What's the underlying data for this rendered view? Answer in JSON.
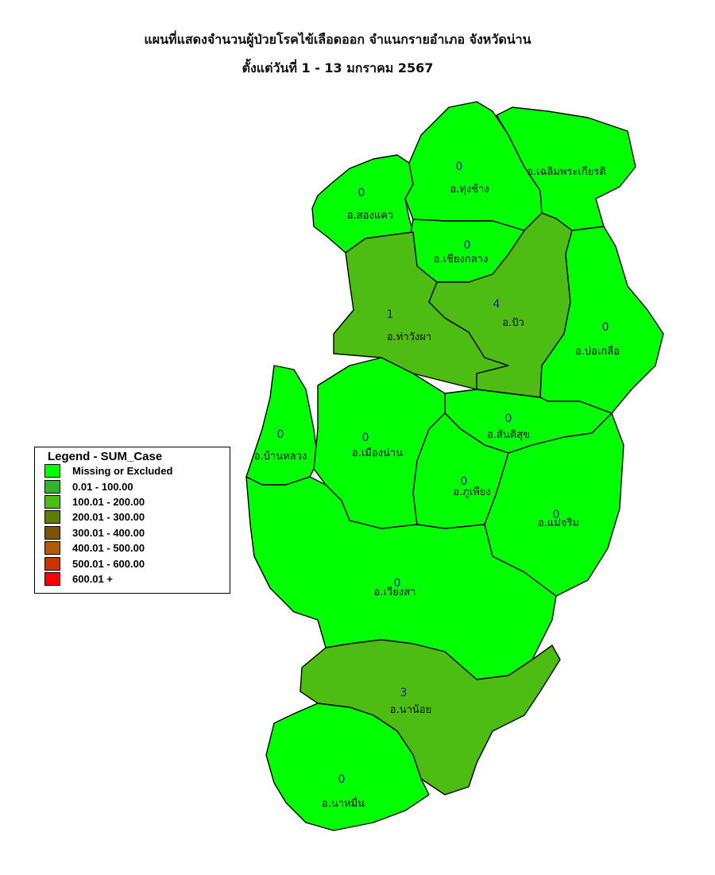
{
  "title_line1": "แผนที่แสดงจำนวนผู้ป่วยโรคไข้เลือดออก จำแนกรายอำเภอ จังหวัดน่าน",
  "title_line2": "ตั้งแต่วันที่ 1  - 13 มกราคม 2567",
  "legend": {
    "title": "Legend - SUM_Case",
    "items": [
      {
        "label": "Missing or Excluded",
        "color": "#00ff00"
      },
      {
        "label": "0.01 - 100.00",
        "color": "#2fb52f"
      },
      {
        "label": "100.01 - 200.00",
        "color": "#4dbd13"
      },
      {
        "label": "200.01 - 300.00",
        "color": "#5b7d0a"
      },
      {
        "label": "300.01 - 400.00",
        "color": "#7d5206"
      },
      {
        "label": "400.01 - 500.00",
        "color": "#b35a00"
      },
      {
        "label": "500.01 - 600.00",
        "color": "#cc3300"
      },
      {
        "label": "600.01 +",
        "color": "#ff0000"
      }
    ]
  },
  "districts": {
    "songkhwae": {
      "name": "อ.สองแคว",
      "cases": "0"
    },
    "thungchang": {
      "name": "อ.ทุ่งช้าง",
      "cases": "0"
    },
    "chaloem": {
      "name": "อ.เฉลิมพระเกียรติ"
    },
    "chiangklang": {
      "name": "อ.เชียงกลาง",
      "cases": "0"
    },
    "thawangpha": {
      "name": "อ.ท่าวังผา",
      "cases": "1"
    },
    "pua": {
      "name": "อ.ปัว",
      "cases": "4"
    },
    "bokluea": {
      "name": "อ.บ่อเกลือ",
      "cases": "0"
    },
    "santisuk": {
      "name": "อ.สันติสุข",
      "cases": "0"
    },
    "banluang": {
      "name": "อ.บ้านหลวง",
      "cases": "0"
    },
    "mueangnan": {
      "name": "อ.เมืองน่าน",
      "cases": "0"
    },
    "phukhiang": {
      "name": "อ.ภูเพียง",
      "cases": "0"
    },
    "maecharim": {
      "name": "อ.แม่จริม",
      "cases": "0"
    },
    "wiangsa": {
      "name": "อ.เวียงสา",
      "cases": "0"
    },
    "nanoi": {
      "name": "อ.นาน้อย",
      "cases": "3"
    },
    "namuen": {
      "name": "อ.นาหมื่น",
      "cases": "0"
    }
  }
}
